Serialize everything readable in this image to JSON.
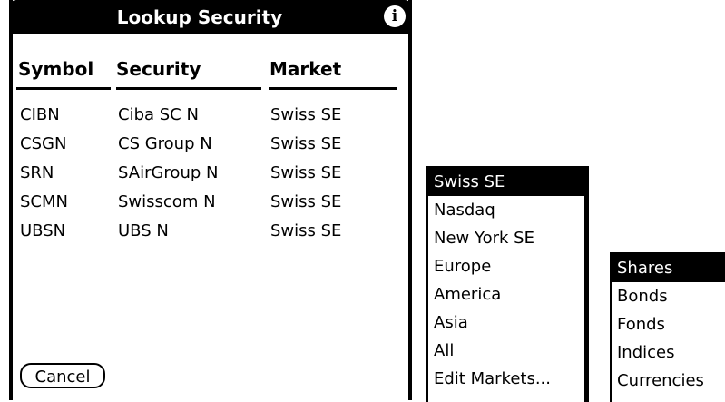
{
  "dialog": {
    "title": "Lookup Security",
    "columns": [
      "Symbol",
      "Security",
      "Market"
    ],
    "rows": [
      [
        "CIBN",
        "Ciba SC N",
        "Swiss SE"
      ],
      [
        "CSGN",
        "CS Group N",
        "Swiss SE"
      ],
      [
        "SRN",
        "SAirGroup N",
        "Swiss SE"
      ],
      [
        "SCMN",
        "Swisscom N",
        "Swiss SE"
      ],
      [
        "UBSN",
        "UBS N",
        "Swiss SE"
      ]
    ],
    "cancel_button": "Cancel"
  },
  "market_list": [
    "Swiss SE",
    "Nasdaq",
    "New York SE",
    "Europe",
    "America",
    "Asia",
    "All",
    "Edit Markets..."
  ],
  "type_list": [
    "Shares",
    "Bonds",
    "Fonds",
    "Indices",
    "Currencies"
  ]
}
